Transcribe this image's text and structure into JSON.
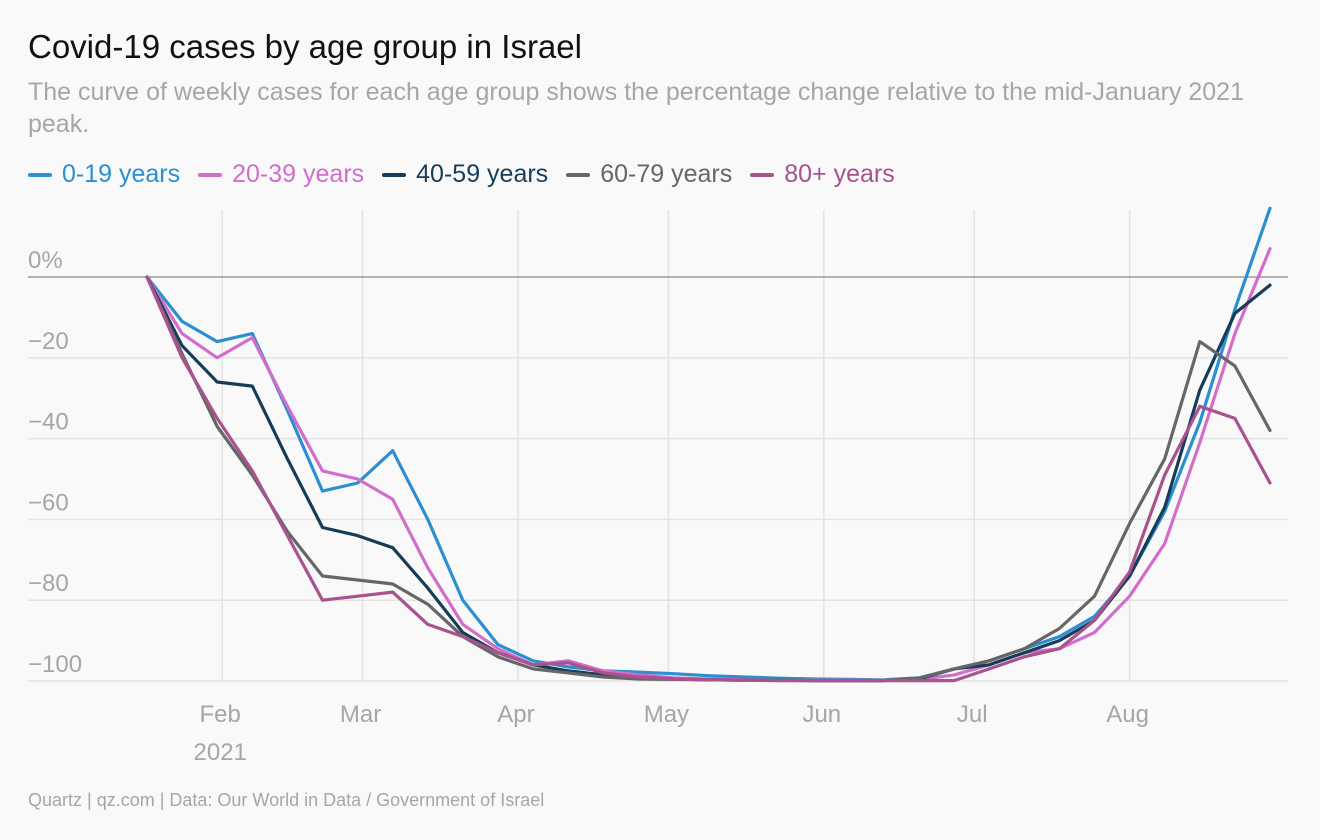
{
  "header": {
    "title": "Covid-19 cases by age group in Israel",
    "subtitle": "The curve of weekly cases for each age group shows the percentage change relative to the mid-January 2021 peak."
  },
  "footer": {
    "source": "Quartz | qz.com | Data: Our World in Data / Government of Israel"
  },
  "chart_data": {
    "type": "line",
    "title": "Covid-19 cases by age group in Israel",
    "subtitle": "The curve of weekly cases for each age group shows the percentage change relative to the mid-January 2021 peak.",
    "x": [
      "2021-01-17",
      "2021-01-24",
      "2021-01-31",
      "2021-02-07",
      "2021-02-14",
      "2021-02-21",
      "2021-02-28",
      "2021-03-07",
      "2021-03-14",
      "2021-03-21",
      "2021-03-28",
      "2021-04-04",
      "2021-04-11",
      "2021-04-18",
      "2021-04-25",
      "2021-05-02",
      "2021-05-09",
      "2021-05-16",
      "2021-05-23",
      "2021-05-30",
      "2021-06-06",
      "2021-06-13",
      "2021-06-20",
      "2021-06-27",
      "2021-07-04",
      "2021-07-11",
      "2021-07-18",
      "2021-07-25",
      "2021-08-01",
      "2021-08-08",
      "2021-08-15",
      "2021-08-22",
      "2021-08-29"
    ],
    "x_ticks": [
      {
        "date": "2021-02-01",
        "label": "Feb",
        "sublabel": "2021"
      },
      {
        "date": "2021-03-01",
        "label": "Mar"
      },
      {
        "date": "2021-04-01",
        "label": "Apr"
      },
      {
        "date": "2021-05-01",
        "label": "May"
      },
      {
        "date": "2021-06-01",
        "label": "Jun"
      },
      {
        "date": "2021-07-01",
        "label": "Jul"
      },
      {
        "date": "2021-08-01",
        "label": "Aug"
      }
    ],
    "y_ticks": [
      {
        "value": 0,
        "label": "0%"
      },
      {
        "value": -20,
        "label": "−20"
      },
      {
        "value": -40,
        "label": "−40"
      },
      {
        "value": -60,
        "label": "−60"
      },
      {
        "value": -80,
        "label": "−80"
      },
      {
        "value": -100,
        "label": "−100"
      }
    ],
    "ylim": [
      -100,
      17
    ],
    "grid": true,
    "legend_position": "top-left",
    "series": [
      {
        "name": "0-19 years",
        "color": "#2b8fd0",
        "values": [
          0,
          -11,
          -16,
          -14,
          -33,
          -53,
          -51,
          -43,
          -60,
          -80,
          -91,
          -95,
          -96.5,
          -97.5,
          -97.8,
          -98.2,
          -98.7,
          -99,
          -99.3,
          -99.5,
          -99.6,
          -99.7,
          -99.2,
          -97,
          -95,
          -92,
          -89,
          -84,
          -74,
          -58,
          -36,
          -8,
          17
        ]
      },
      {
        "name": "20-39 years",
        "color": "#d16ecb",
        "values": [
          0,
          -14,
          -20,
          -15,
          -32,
          -48,
          -50,
          -55,
          -72,
          -86,
          -92,
          -96,
          -95,
          -97.5,
          -98.5,
          -99.2,
          -99.5,
          -99.7,
          -99.8,
          -99.8,
          -99.8,
          -99.8,
          -99.6,
          -98.5,
          -96,
          -93,
          -92,
          -88,
          -79,
          -66,
          -41,
          -14,
          7
        ]
      },
      {
        "name": "40-59 years",
        "color": "#163c58",
        "values": [
          0,
          -17,
          -26,
          -27,
          -45,
          -62,
          -64,
          -67,
          -77,
          -88,
          -93,
          -96,
          -97.5,
          -98.5,
          -99,
          -99.5,
          -99.7,
          -99.8,
          -99.8,
          -99.9,
          -99.9,
          -99.9,
          -99.5,
          -97,
          -96,
          -93,
          -90,
          -85,
          -74,
          -57,
          -28,
          -9,
          -2
        ]
      },
      {
        "name": "60-79 years",
        "color": "#666666",
        "values": [
          0,
          -19,
          -37,
          -49,
          -63,
          -74,
          -75,
          -76,
          -81,
          -89,
          -94,
          -97,
          -98,
          -99,
          -99.5,
          -99.6,
          -99.7,
          -99.8,
          -99.8,
          -99.9,
          -99.9,
          -99.9,
          -99.3,
          -97,
          -95,
          -92,
          -87,
          -79,
          -61,
          -45,
          -16,
          -22,
          -38
        ]
      },
      {
        "name": "80+ years",
        "color": "#a8538d",
        "values": [
          0,
          -20,
          -35,
          -48,
          -64,
          -80,
          -79,
          -78,
          -86,
          -89,
          -93,
          -96,
          -95.5,
          -98,
          -99,
          -99.5,
          -99.7,
          -99.8,
          -99.9,
          -99.9,
          -99.9,
          -99.9,
          -99.9,
          -99.9,
          -97,
          -94,
          -92,
          -85,
          -73,
          -49,
          -32,
          -35,
          -51
        ]
      }
    ]
  }
}
